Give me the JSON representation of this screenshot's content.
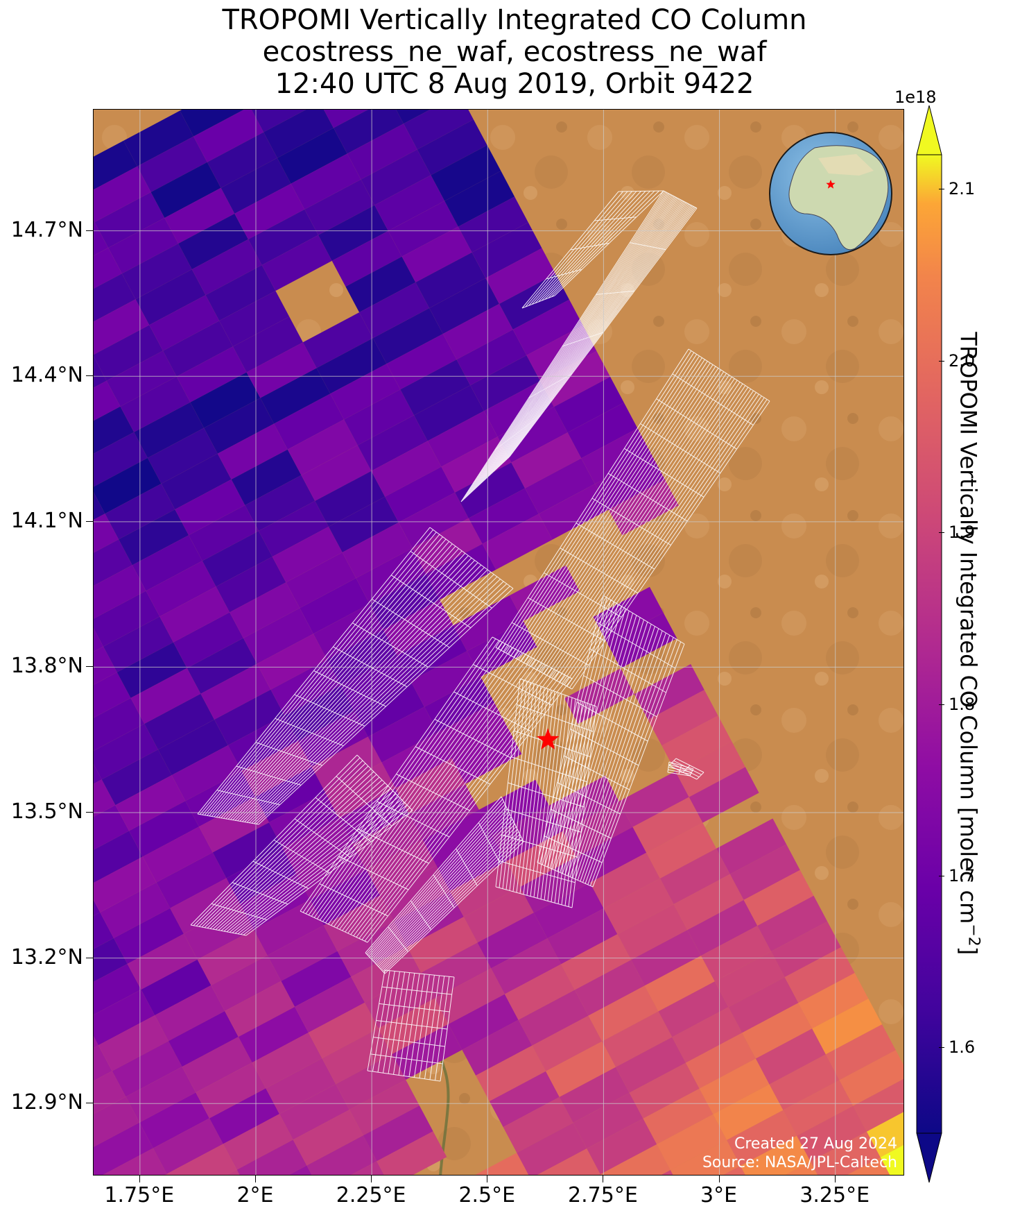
{
  "title": {
    "line1": "TROPOMI Vertically Integrated CO Column",
    "line2": "ecostress_ne_waf, ecostress_ne_waf",
    "line3": "12:40 UTC 8 Aug 2019, Orbit 9422"
  },
  "map": {
    "lon_range": [
      1.65,
      3.4
    ],
    "lat_range": [
      12.75,
      14.95
    ],
    "lat_ticks": [
      {
        "value": 14.7,
        "label": "14.7°N"
      },
      {
        "value": 14.4,
        "label": "14.4°N"
      },
      {
        "value": 14.1,
        "label": "14.1°N"
      },
      {
        "value": 13.8,
        "label": "13.8°N"
      },
      {
        "value": 13.5,
        "label": "13.5°N"
      },
      {
        "value": 13.2,
        "label": "13.2°N"
      },
      {
        "value": 12.9,
        "label": "12.9°N"
      }
    ],
    "lon_ticks": [
      {
        "value": 1.75,
        "label": "1.75°E"
      },
      {
        "value": 2.0,
        "label": "2°E"
      },
      {
        "value": 2.25,
        "label": "2.25°E"
      },
      {
        "value": 2.5,
        "label": "2.5°E"
      },
      {
        "value": 2.75,
        "label": "2.75°E"
      },
      {
        "value": 3.0,
        "label": "3°E"
      },
      {
        "value": 3.25,
        "label": "3.25°E"
      }
    ],
    "gridlines": true,
    "site_marker": {
      "lon": 2.63,
      "lat": 13.65,
      "symbol": "star",
      "color": "#ff0000"
    },
    "inset_globe": {
      "position": "top-right",
      "marker_color": "#ff0000",
      "ocean_color": "#5b9bd0",
      "land_color": "#cdd9b0"
    },
    "basemap_color": "#c98c4f",
    "credit_line1": "Created 27 Aug 2024",
    "credit_line2": "Source: NASA/JPL-Caltech"
  },
  "colorbar": {
    "label_prefix": "TROPOMI Vertically Integrated CO Column [molec cm",
    "label_exp": "−2",
    "label_suffix": "]",
    "exponent": "1e18",
    "range": [
      1.55,
      2.12
    ],
    "ticks": [
      "1.6",
      "1.7",
      "1.8",
      "1.9",
      "2.0",
      "2.1"
    ],
    "tick_values": [
      1.6,
      1.7,
      1.8,
      1.9,
      2.0,
      2.1
    ],
    "colormap": "plasma",
    "extend": "both"
  }
}
